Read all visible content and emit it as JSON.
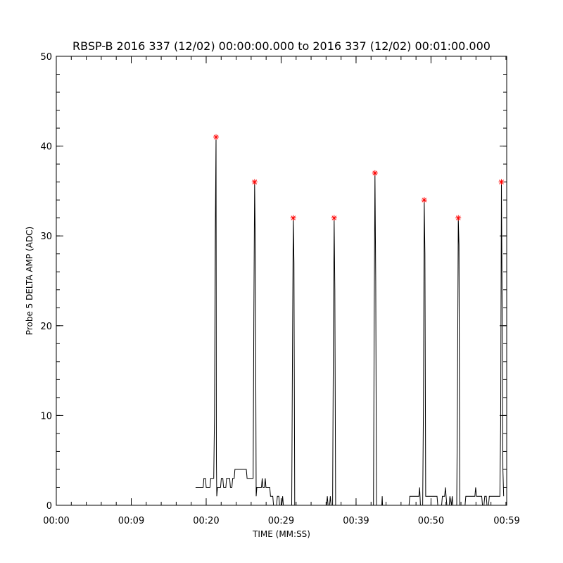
{
  "chart_data": {
    "type": "line",
    "title": "RBSP-B 2016 337 (12/02) 00:00:00.000 to 2016 337 (12/02) 00:01:00.000",
    "xlabel": "TIME (MM:SS)",
    "ylabel": "Probe 5 DELTA AMP (ADC)",
    "xlim": [
      0,
      59.5
    ],
    "ylim": [
      0,
      50
    ],
    "x_ticks": [
      {
        "value": 0,
        "label": "00:00"
      },
      {
        "value": 9.9,
        "label": "00:09"
      },
      {
        "value": 19.8,
        "label": "00:20"
      },
      {
        "value": 29.7,
        "label": "00:29"
      },
      {
        "value": 39.6,
        "label": "00:39"
      },
      {
        "value": 49.5,
        "label": "00:50"
      },
      {
        "value": 59.5,
        "label": "00:59"
      }
    ],
    "y_ticks": [
      0,
      10,
      20,
      30,
      40,
      50
    ],
    "x_minor_step": 1.98,
    "y_minor_step": 2,
    "line_color": "#000000",
    "marker_color": "#ff0000",
    "series": [
      {
        "values": [
          [
            18.4,
            2
          ],
          [
            19.4,
            2
          ],
          [
            19.5,
            3
          ],
          [
            19.7,
            3
          ],
          [
            19.8,
            2
          ],
          [
            20.3,
            2
          ],
          [
            20.4,
            3
          ],
          [
            20.8,
            3
          ],
          [
            20.9,
            10
          ],
          [
            21.0,
            30
          ],
          [
            21.1,
            41
          ],
          [
            21.15,
            5
          ],
          [
            21.2,
            1
          ],
          [
            21.3,
            2
          ],
          [
            21.7,
            2
          ],
          [
            21.8,
            3
          ],
          [
            22.0,
            3
          ],
          [
            22.1,
            2
          ],
          [
            22.4,
            2
          ],
          [
            22.5,
            3
          ],
          [
            22.9,
            3
          ],
          [
            23.0,
            2
          ],
          [
            23.2,
            2
          ],
          [
            23.3,
            3
          ],
          [
            23.5,
            3
          ],
          [
            23.6,
            4
          ],
          [
            25.1,
            4
          ],
          [
            25.2,
            3
          ],
          [
            26.0,
            3
          ],
          [
            26.1,
            21
          ],
          [
            26.2,
            36
          ],
          [
            26.3,
            28
          ],
          [
            26.4,
            1
          ],
          [
            26.5,
            2
          ],
          [
            27.1,
            2
          ],
          [
            27.2,
            3
          ],
          [
            27.3,
            2
          ],
          [
            27.5,
            2
          ],
          [
            27.6,
            3
          ],
          [
            27.7,
            2
          ],
          [
            28.2,
            2
          ],
          [
            28.3,
            1
          ],
          [
            28.6,
            1
          ],
          [
            28.7,
            0
          ],
          [
            29.1,
            0
          ],
          [
            29.2,
            1
          ],
          [
            29.4,
            1
          ],
          [
            29.5,
            0
          ],
          [
            29.8,
            0
          ],
          [
            29.9,
            1
          ],
          [
            30.0,
            0
          ],
          [
            31.1,
            0
          ],
          [
            31.2,
            17
          ],
          [
            31.3,
            32
          ],
          [
            31.4,
            27
          ],
          [
            31.5,
            0
          ],
          [
            35.7,
            0
          ],
          [
            35.8,
            1
          ],
          [
            35.9,
            0
          ],
          [
            36.1,
            0
          ],
          [
            36.2,
            1
          ],
          [
            36.3,
            0
          ],
          [
            36.5,
            0
          ],
          [
            36.6,
            18
          ],
          [
            36.7,
            32
          ],
          [
            36.8,
            24
          ],
          [
            36.9,
            0
          ],
          [
            41.9,
            0
          ],
          [
            42.0,
            22
          ],
          [
            42.1,
            37
          ],
          [
            42.2,
            25
          ],
          [
            42.3,
            0
          ],
          [
            43.0,
            0
          ],
          [
            43.05,
            1
          ],
          [
            43.1,
            0
          ],
          [
            46.6,
            0
          ],
          [
            46.7,
            1
          ],
          [
            47.9,
            1
          ],
          [
            48.0,
            2
          ],
          [
            48.1,
            0
          ],
          [
            48.4,
            0
          ],
          [
            48.5,
            11
          ],
          [
            48.6,
            34
          ],
          [
            48.7,
            28
          ],
          [
            48.8,
            1
          ],
          [
            50.3,
            1
          ],
          [
            50.4,
            0
          ],
          [
            50.9,
            0
          ],
          [
            51.0,
            1
          ],
          [
            51.3,
            1
          ],
          [
            51.4,
            2
          ],
          [
            51.5,
            1
          ],
          [
            51.6,
            0
          ],
          [
            51.9,
            0
          ],
          [
            52.0,
            1
          ],
          [
            52.2,
            0
          ],
          [
            52.3,
            1
          ],
          [
            52.4,
            0
          ],
          [
            52.9,
            0
          ],
          [
            53.0,
            13
          ],
          [
            53.1,
            32
          ],
          [
            53.2,
            29
          ],
          [
            53.3,
            0
          ],
          [
            54.0,
            0
          ],
          [
            54.1,
            1
          ],
          [
            55.3,
            1
          ],
          [
            55.4,
            2
          ],
          [
            55.5,
            1
          ],
          [
            56.2,
            1
          ],
          [
            56.3,
            0
          ],
          [
            56.5,
            0
          ],
          [
            56.6,
            1
          ],
          [
            56.8,
            1
          ],
          [
            56.9,
            0
          ],
          [
            57.1,
            0
          ],
          [
            57.2,
            1
          ],
          [
            58.6,
            1
          ],
          [
            58.7,
            9
          ],
          [
            58.8,
            36
          ],
          [
            58.9,
            22
          ],
          [
            59.0,
            4
          ],
          [
            59.1,
            1
          ]
        ]
      }
    ],
    "peaks": [
      {
        "x": 21.1,
        "y": 41
      },
      {
        "x": 26.2,
        "y": 36
      },
      {
        "x": 31.3,
        "y": 32
      },
      {
        "x": 36.7,
        "y": 32
      },
      {
        "x": 42.1,
        "y": 37
      },
      {
        "x": 48.6,
        "y": 34
      },
      {
        "x": 53.1,
        "y": 32
      },
      {
        "x": 58.8,
        "y": 36
      }
    ]
  }
}
